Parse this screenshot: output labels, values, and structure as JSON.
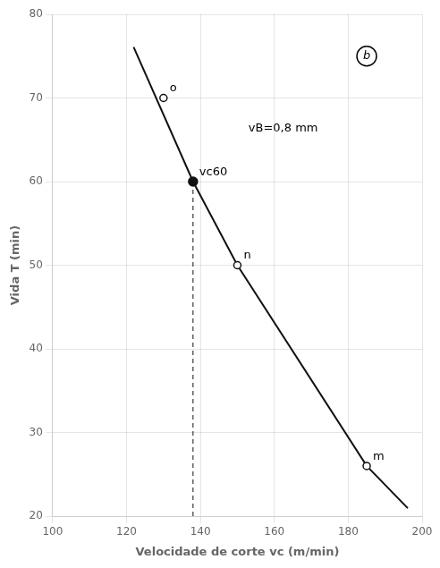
{
  "chart_data": {
    "type": "line",
    "xlabel": "Velocidade de corte vc (m/min)",
    "ylabel": "Vida T (min)",
    "x": [
      122,
      138,
      150,
      185,
      196
    ],
    "values": [
      76,
      60,
      50,
      26,
      21
    ],
    "color": "#111111",
    "xlim": [
      100,
      200
    ],
    "ylim": [
      20,
      80
    ],
    "xticks": [
      100,
      120,
      140,
      160,
      180,
      200
    ],
    "yticks": [
      20,
      30,
      40,
      50,
      60,
      70,
      80
    ],
    "grid": true,
    "points": [
      {
        "x": 130,
        "y": 70,
        "label": "o",
        "marker": "open"
      },
      {
        "x": 150,
        "y": 50,
        "label": "n",
        "marker": "open"
      },
      {
        "x": 185,
        "y": 26,
        "label": "m",
        "marker": "open"
      },
      {
        "x": 138,
        "y": 60,
        "label": "vc60",
        "marker": "filled"
      }
    ],
    "vline": {
      "x": 138,
      "y": [
        20,
        60
      ],
      "line_style": "dashed"
    },
    "annotations": [
      {
        "x": 153,
        "y": 66,
        "text": "vB=0,8 mm"
      },
      {
        "x": 185,
        "y": 75,
        "text": "b",
        "marker": "circle"
      }
    ]
  }
}
